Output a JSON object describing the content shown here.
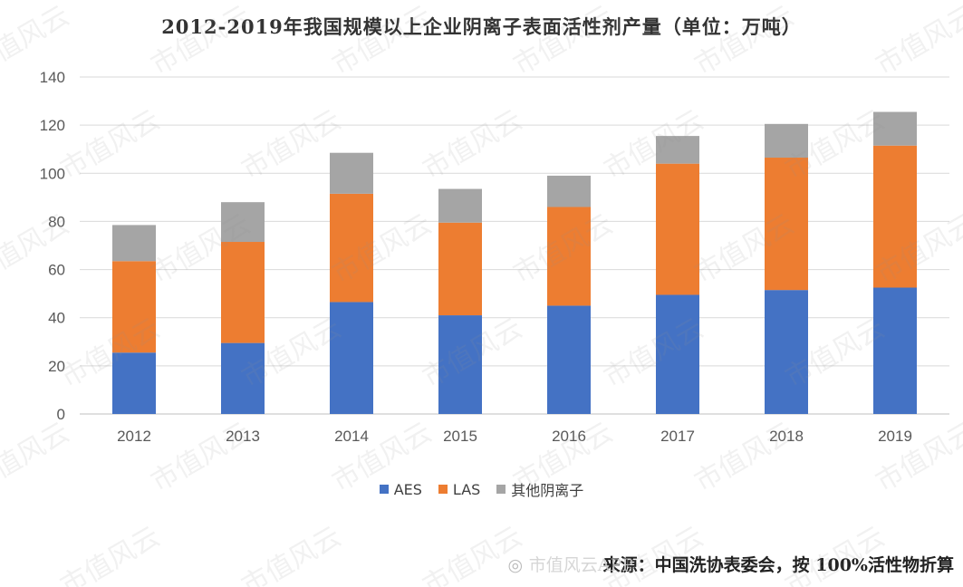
{
  "chart_data": {
    "type": "bar",
    "stacked": true,
    "title": "2012-2019年我国规模以上企业阴离子表面活性剂产量（单位：万吨）",
    "categories": [
      "2012",
      "2013",
      "2014",
      "2015",
      "2016",
      "2017",
      "2018",
      "2019"
    ],
    "series": [
      {
        "name": "AES",
        "color": "#4472C4",
        "values": [
          25.5,
          29.5,
          46.5,
          41,
          45,
          49.5,
          51.5,
          52.5
        ]
      },
      {
        "name": "LAS",
        "color": "#ED7D31",
        "values": [
          38,
          42,
          45,
          38.5,
          41,
          54.5,
          55,
          59
        ]
      },
      {
        "name": "其他阴离子",
        "color": "#A5A5A5",
        "values": [
          15,
          16.5,
          17,
          14,
          13,
          11.5,
          14,
          14
        ]
      }
    ],
    "ylim": [
      0,
      140
    ],
    "yticks": [
      0,
      20,
      40,
      60,
      80,
      100,
      120,
      140
    ],
    "grid": true,
    "legend_position": "bottom"
  },
  "source_note": "来源：中国洗协表委会，按 100%活性物折算",
  "watermark": {
    "text": "市值风云"
  },
  "logo": {
    "text": "市值风云APP"
  }
}
